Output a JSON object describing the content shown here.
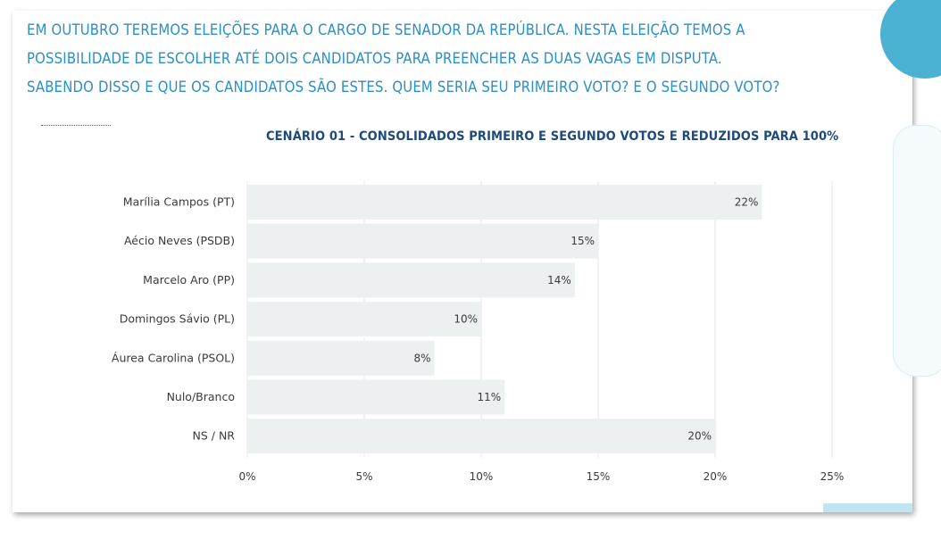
{
  "question": {
    "lines": [
      "EM OUTUBRO TEREMOS ELEIÇÕES PARA O CARGO DE SENADOR DA REPÚBLICA. NESTA ELEIÇÃO TEMOS A",
      "POSSIBILIDADE DE ESCOLHER ATÉ DOIS CANDIDATOS PARA PREENCHER AS DUAS VAGAS EM DISPUTA.",
      "SABENDO DISSO E QUE OS CANDIDATOS SÃO ESTES. QUEM SERIA SEU PRIMEIRO VOTO? E O SEGUNDO VOTO?"
    ]
  },
  "colors": {
    "question_text": "#2a8fc4",
    "title_text": "#1f4a7c",
    "bar_fill": "#edf0f0",
    "grid": "#e6e6e6",
    "accent": "#4bb1d3"
  },
  "chart_data": {
    "type": "bar",
    "orientation": "horizontal",
    "title": "CENÁRIO 01 - CONSOLIDADOS PRIMEIRO E SEGUNDO VOTOS E REDUZIDOS PARA 100%",
    "categories": [
      "Marília Campos (PT)",
      "Aécio Neves (PSDB)",
      "Marcelo Aro (PP)",
      "Domingos Sávio (PL)",
      "Áurea Carolina (PSOL)",
      "Nulo/Branco",
      "NS / NR"
    ],
    "values": [
      22,
      15,
      14,
      10,
      8,
      11,
      20
    ],
    "value_labels": [
      "22%",
      "15%",
      "14%",
      "10%",
      "8%",
      "11%",
      "20%"
    ],
    "xlim": [
      0,
      25
    ],
    "xticks": [
      0,
      5,
      10,
      15,
      20,
      25
    ],
    "xtick_labels": [
      "0%",
      "5%",
      "10%",
      "15%",
      "20%",
      "25%"
    ],
    "xlabel": "",
    "ylabel": "",
    "grid": true
  }
}
